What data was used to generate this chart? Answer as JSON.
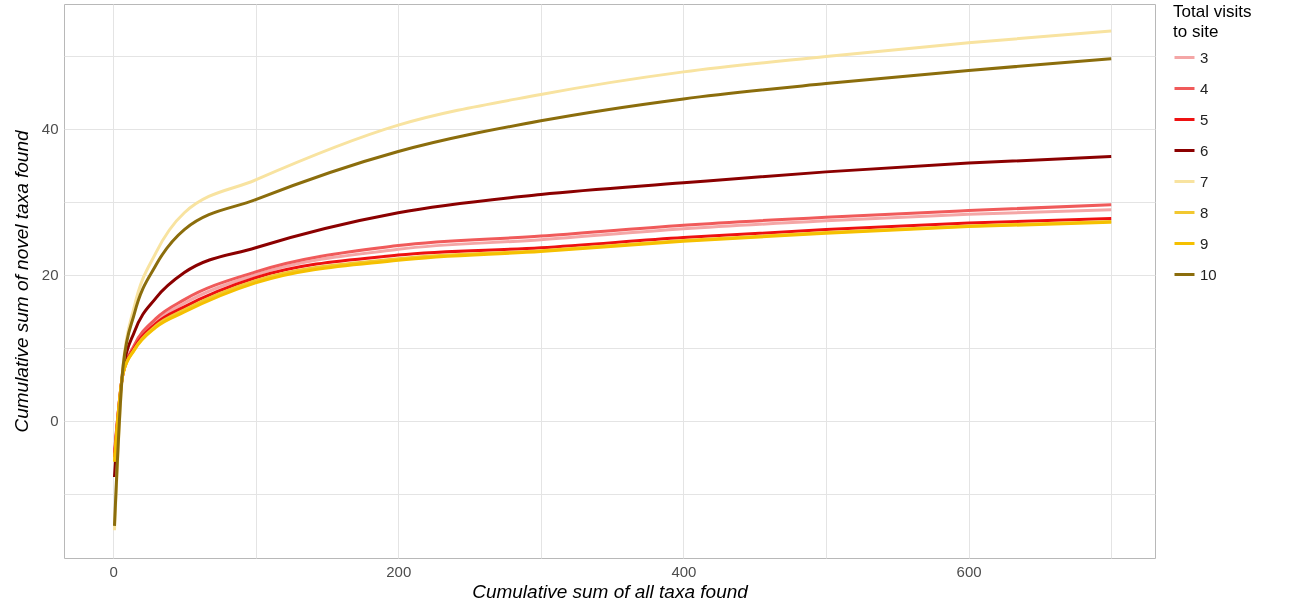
{
  "chart_data": {
    "type": "line",
    "xlabel": "Cumulative sum of all taxa found",
    "ylabel": "Cumulative sum of novel taxa found",
    "legend_title": "Total visits to site",
    "x": [
      1,
      7,
      15,
      30,
      50,
      100,
      200,
      300,
      400,
      500,
      600,
      700
    ],
    "series": [
      {
        "name": "3",
        "color": "#f4a6a6",
        "values": [
          -4.5,
          6.5,
          10.2,
          13.6,
          16.1,
          20.0,
          23.5,
          24.8,
          26.3,
          27.4,
          28.3,
          28.9
        ]
      },
      {
        "name": "4",
        "color": "#f05a5a",
        "values": [
          -4.4,
          6.5,
          10.4,
          14.0,
          16.6,
          20.4,
          24.0,
          25.3,
          26.8,
          27.9,
          28.8,
          29.6
        ]
      },
      {
        "name": "5",
        "color": "#ee1111",
        "values": [
          -5.0,
          6.5,
          10.0,
          13.3,
          15.6,
          19.6,
          22.7,
          23.7,
          25.1,
          26.2,
          27.1,
          27.7
        ]
      },
      {
        "name": "6",
        "color": "#8b0000",
        "values": [
          -7.7,
          7.0,
          12.2,
          16.8,
          20.3,
          23.7,
          28.5,
          31.0,
          32.6,
          34.1,
          35.3,
          36.2
        ]
      },
      {
        "name": "7",
        "color": "#f8e3a0",
        "values": [
          -15.0,
          7.5,
          15.7,
          23.0,
          28.5,
          33.0,
          40.5,
          44.7,
          47.8,
          49.9,
          51.8,
          53.4
        ]
      },
      {
        "name": "8",
        "color": "#f2c830",
        "values": [
          -5.6,
          6.5,
          9.8,
          13.0,
          15.2,
          19.2,
          22.2,
          23.3,
          24.7,
          25.8,
          26.7,
          27.3
        ]
      },
      {
        "name": "9",
        "color": "#f5c000",
        "values": [
          -5.6,
          6.5,
          9.7,
          12.8,
          14.9,
          18.9,
          22.0,
          23.2,
          24.6,
          25.7,
          26.6,
          27.2
        ]
      },
      {
        "name": "10",
        "color": "#8b6d0c",
        "values": [
          -14.4,
          7.4,
          14.7,
          21.3,
          26.2,
          30.3,
          36.9,
          41.1,
          44.1,
          46.2,
          48.0,
          49.6
        ]
      }
    ],
    "xlim": [
      -34.4,
      730.7
    ],
    "ylim": [
      -18.8,
      57.1
    ],
    "xticks": [
      0,
      {
        "value": 100,
        "label": null
      },
      200,
      {
        "value": 300,
        "label": null
      },
      400,
      {
        "value": 500,
        "label": null
      },
      600,
      {
        "value": 700,
        "label": null
      }
    ],
    "yticks": [
      {
        "value": -10,
        "label": null
      },
      0,
      {
        "value": 10,
        "label": null
      },
      20,
      {
        "value": 30,
        "label": null
      },
      40,
      {
        "value": 50,
        "label": null
      }
    ],
    "grid": true,
    "legend": "right",
    "marker": "none",
    "line_style": "solid"
  }
}
